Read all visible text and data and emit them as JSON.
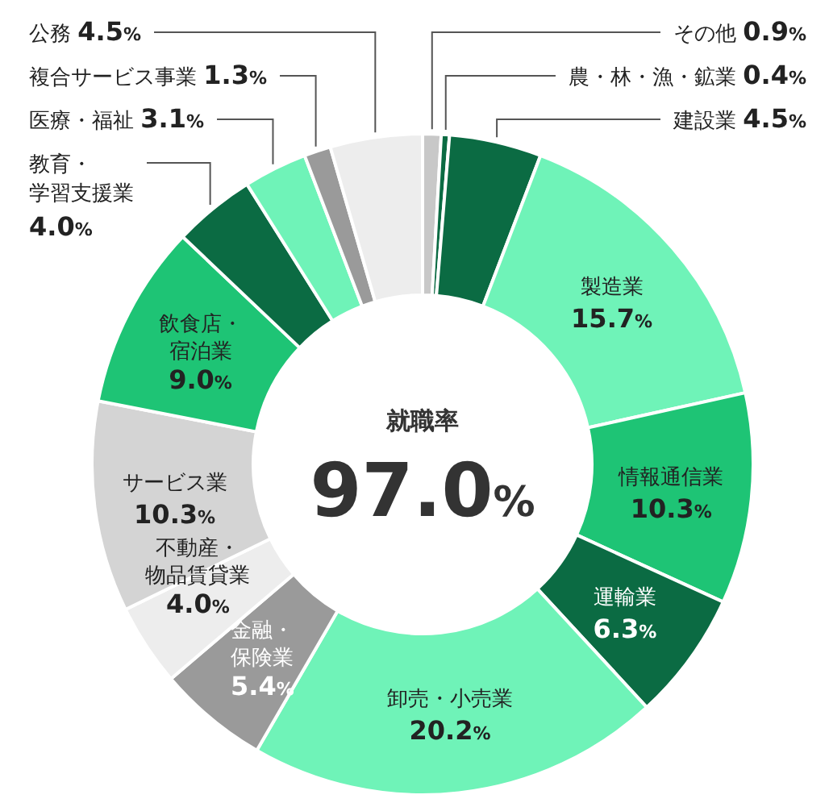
{
  "chart_data": {
    "type": "donut",
    "title": "就職率",
    "annotations": [
      "97.0%"
    ],
    "categories": [
      "その他",
      "農・林・漁・鉱業",
      "建設業",
      "製造業",
      "情報通信業",
      "運輸業",
      "卸売・小売業",
      "金融・保険業",
      "不動産・物品賃貸業",
      "サービス業",
      "飲食店・宿泊業",
      "教育・学習支援業",
      "医療・福祉",
      "複合サービス事業",
      "公務"
    ],
    "values": [
      0.9,
      0.4,
      4.5,
      15.7,
      10.3,
      6.3,
      20.2,
      5.4,
      4.0,
      10.3,
      9.0,
      4.0,
      3.1,
      1.3,
      4.5
    ],
    "value_labels": [
      "0.9%",
      "0.4%",
      "4.5%",
      "15.7%",
      "10.3%",
      "6.3%",
      "20.2%",
      "5.4%",
      "4.0%",
      "10.3%",
      "9.0%",
      "4.0%",
      "3.1%",
      "1.3%",
      "4.5%"
    ],
    "colors": [
      "#c8c8c8",
      "#0b6b43",
      "#0b6b43",
      "#6ff3b8",
      "#1ec475",
      "#0b6b43",
      "#6ff3b8",
      "#9a9a9a",
      "#ededed",
      "#d4d4d4",
      "#1ec475",
      "#0b6b43",
      "#6ff3b8",
      "#9a9a9a",
      "#ededed"
    ]
  }
}
